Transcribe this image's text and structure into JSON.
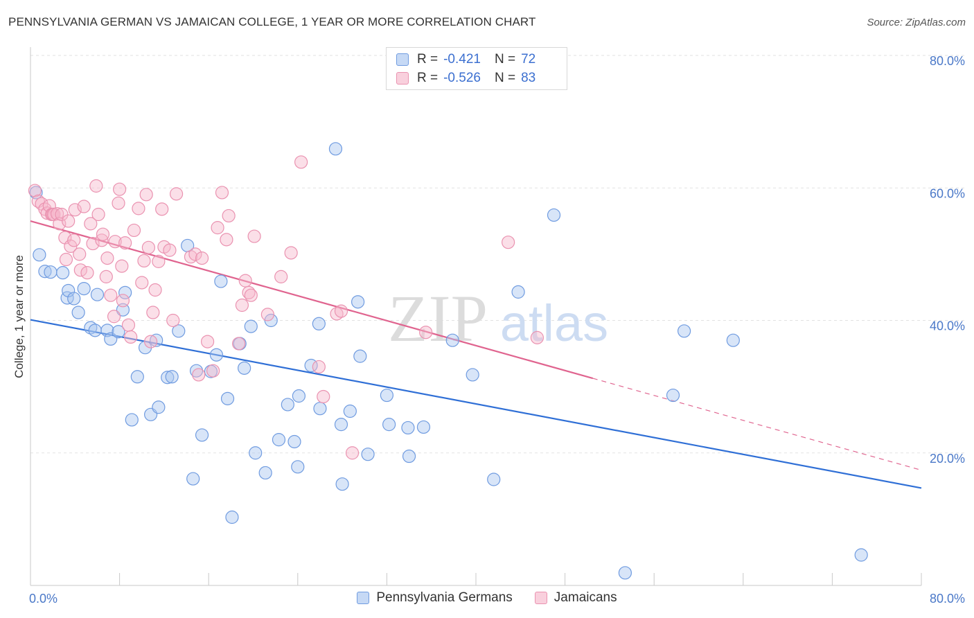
{
  "title": "PENNSYLVANIA GERMAN VS JAMAICAN COLLEGE, 1 YEAR OR MORE CORRELATION CHART",
  "source": "Source: ZipAtlas.com",
  "watermark": {
    "zip": "ZIP",
    "atlas": "atlas"
  },
  "legend": {
    "r_label": "R =",
    "n_label": "N =",
    "rows": [
      {
        "r": "-0.421",
        "n": "72"
      },
      {
        "r": "-0.526",
        "n": "83"
      }
    ]
  },
  "colors": {
    "blue_fill": "#a9c6f0",
    "blue_stroke": "#6f9be0",
    "blue_line": "#2f6fd6",
    "pink_fill": "#f6b9cd",
    "pink_stroke": "#ea92b0",
    "pink_line": "#e0648f",
    "tick_text": "#4a78c8",
    "grid": "#e2e2e2"
  },
  "chart_data": {
    "type": "scatter",
    "title": "PENNSYLVANIA GERMAN VS JAMAICAN COLLEGE, 1 YEAR OR MORE CORRELATION CHART",
    "ylabel": "College, 1 year or more",
    "xlabel": "",
    "xlim": [
      0,
      80
    ],
    "ylim": [
      0,
      80
    ],
    "x_tick_labels": [
      "0.0%",
      "80.0%"
    ],
    "y_ticks": [
      20,
      40,
      60,
      80
    ],
    "y_tick_labels": [
      "20.0%",
      "40.0%",
      "60.0%",
      "80.0%"
    ],
    "grid": true,
    "legend_position": "top-center",
    "series": [
      {
        "name": "Pennsylvania Germans",
        "stats": {
          "r": -0.421,
          "n": 72
        },
        "trend": {
          "x": [
            0,
            80
          ],
          "y": [
            40.1,
            14.7
          ],
          "dashed_from": null
        },
        "points": [
          [
            0.8,
            49.9
          ],
          [
            1.3,
            47.4
          ],
          [
            1.8,
            47.3
          ],
          [
            2.9,
            47.2
          ],
          [
            3.3,
            43.4
          ],
          [
            3.4,
            44.5
          ],
          [
            3.9,
            43.3
          ],
          [
            4.3,
            41.2
          ],
          [
            4.8,
            44.8
          ],
          [
            5.4,
            38.9
          ],
          [
            5.8,
            38.5
          ],
          [
            6.0,
            43.9
          ],
          [
            6.9,
            38.5
          ],
          [
            7.2,
            37.2
          ],
          [
            7.9,
            38.3
          ],
          [
            8.3,
            41.6
          ],
          [
            8.5,
            44.2
          ],
          [
            9.1,
            25.0
          ],
          [
            9.6,
            31.5
          ],
          [
            10.3,
            35.9
          ],
          [
            10.8,
            25.8
          ],
          [
            11.3,
            37.0
          ],
          [
            11.5,
            26.9
          ],
          [
            12.3,
            31.4
          ],
          [
            12.7,
            31.5
          ],
          [
            13.3,
            38.4
          ],
          [
            14.1,
            51.3
          ],
          [
            14.6,
            16.1
          ],
          [
            14.9,
            32.4
          ],
          [
            15.4,
            22.7
          ],
          [
            16.2,
            32.3
          ],
          [
            16.7,
            34.8
          ],
          [
            17.1,
            45.9
          ],
          [
            17.7,
            28.2
          ],
          [
            18.1,
            10.3
          ],
          [
            18.8,
            36.5
          ],
          [
            19.2,
            32.8
          ],
          [
            19.8,
            39.1
          ],
          [
            20.2,
            20.0
          ],
          [
            21.1,
            17.0
          ],
          [
            21.6,
            40.0
          ],
          [
            22.3,
            22.0
          ],
          [
            23.1,
            27.3
          ],
          [
            23.7,
            21.7
          ],
          [
            24.0,
            17.9
          ],
          [
            24.1,
            28.6
          ],
          [
            25.2,
            33.2
          ],
          [
            25.9,
            39.5
          ],
          [
            26.0,
            26.7
          ],
          [
            27.4,
            65.9
          ],
          [
            27.9,
            24.3
          ],
          [
            28.0,
            15.3
          ],
          [
            28.7,
            26.3
          ],
          [
            29.4,
            42.8
          ],
          [
            29.6,
            34.6
          ],
          [
            30.3,
            19.8
          ],
          [
            32.0,
            28.7
          ],
          [
            32.2,
            24.3
          ],
          [
            33.9,
            23.8
          ],
          [
            34.0,
            19.5
          ],
          [
            35.3,
            23.9
          ],
          [
            37.9,
            37.0
          ],
          [
            39.7,
            31.8
          ],
          [
            41.6,
            16.0
          ],
          [
            43.8,
            44.3
          ],
          [
            47.0,
            55.9
          ],
          [
            53.4,
            1.9
          ],
          [
            57.7,
            28.7
          ],
          [
            58.7,
            38.4
          ],
          [
            63.1,
            37.0
          ],
          [
            74.6,
            4.6
          ],
          [
            0.5,
            59.3
          ]
        ]
      },
      {
        "name": "Jamaicans",
        "stats": {
          "r": -0.526,
          "n": 83
        },
        "trend": {
          "x": [
            0,
            80
          ],
          "y": [
            55.0,
            17.4
          ],
          "dashed_from": 50.5
        },
        "points": [
          [
            0.4,
            59.6
          ],
          [
            0.7,
            58.0
          ],
          [
            1.0,
            57.6
          ],
          [
            1.3,
            56.8
          ],
          [
            1.5,
            56.2
          ],
          [
            1.7,
            57.3
          ],
          [
            1.9,
            56.0
          ],
          [
            2.0,
            56.0
          ],
          [
            2.1,
            56.0
          ],
          [
            2.4,
            56.1
          ],
          [
            2.6,
            54.6
          ],
          [
            2.8,
            56.0
          ],
          [
            3.1,
            52.5
          ],
          [
            3.2,
            49.2
          ],
          [
            3.4,
            55.0
          ],
          [
            3.6,
            51.2
          ],
          [
            3.9,
            52.1
          ],
          [
            4.0,
            56.7
          ],
          [
            4.4,
            50.0
          ],
          [
            4.5,
            47.6
          ],
          [
            4.8,
            57.2
          ],
          [
            5.1,
            47.2
          ],
          [
            5.4,
            54.6
          ],
          [
            5.6,
            51.6
          ],
          [
            5.9,
            60.3
          ],
          [
            6.1,
            56.0
          ],
          [
            6.4,
            52.1
          ],
          [
            6.5,
            53.0
          ],
          [
            6.8,
            46.6
          ],
          [
            6.9,
            49.4
          ],
          [
            7.2,
            43.8
          ],
          [
            7.5,
            40.6
          ],
          [
            7.6,
            51.9
          ],
          [
            7.9,
            57.7
          ],
          [
            8.0,
            59.8
          ],
          [
            8.2,
            48.2
          ],
          [
            8.5,
            51.7
          ],
          [
            8.8,
            39.3
          ],
          [
            9.0,
            37.5
          ],
          [
            9.3,
            53.6
          ],
          [
            9.7,
            56.9
          ],
          [
            10.0,
            45.7
          ],
          [
            10.2,
            49.0
          ],
          [
            10.4,
            59.0
          ],
          [
            10.6,
            51.0
          ],
          [
            10.8,
            36.8
          ],
          [
            11.0,
            41.2
          ],
          [
            11.2,
            44.6
          ],
          [
            11.5,
            48.9
          ],
          [
            11.8,
            56.8
          ],
          [
            12.0,
            51.1
          ],
          [
            12.5,
            50.6
          ],
          [
            12.8,
            40.0
          ],
          [
            13.1,
            59.1
          ],
          [
            14.4,
            49.6
          ],
          [
            14.8,
            50.0
          ],
          [
            15.1,
            31.8
          ],
          [
            15.4,
            49.4
          ],
          [
            15.9,
            36.8
          ],
          [
            16.4,
            32.4
          ],
          [
            16.8,
            54.0
          ],
          [
            17.2,
            59.3
          ],
          [
            17.6,
            52.2
          ],
          [
            17.8,
            55.8
          ],
          [
            18.7,
            36.5
          ],
          [
            19.0,
            42.3
          ],
          [
            19.3,
            46.0
          ],
          [
            19.6,
            44.2
          ],
          [
            19.8,
            43.8
          ],
          [
            20.1,
            52.7
          ],
          [
            21.3,
            40.9
          ],
          [
            22.5,
            46.6
          ],
          [
            23.4,
            50.2
          ],
          [
            24.3,
            63.9
          ],
          [
            25.9,
            33.0
          ],
          [
            26.3,
            28.5
          ],
          [
            27.5,
            41.0
          ],
          [
            27.9,
            41.4
          ],
          [
            28.9,
            20.0
          ],
          [
            35.5,
            38.2
          ],
          [
            42.9,
            51.8
          ],
          [
            45.5,
            37.4
          ],
          [
            8.3,
            43.0
          ]
        ]
      }
    ]
  },
  "bottom_legend": [
    "Pennsylvania Germans",
    "Jamaicans"
  ]
}
